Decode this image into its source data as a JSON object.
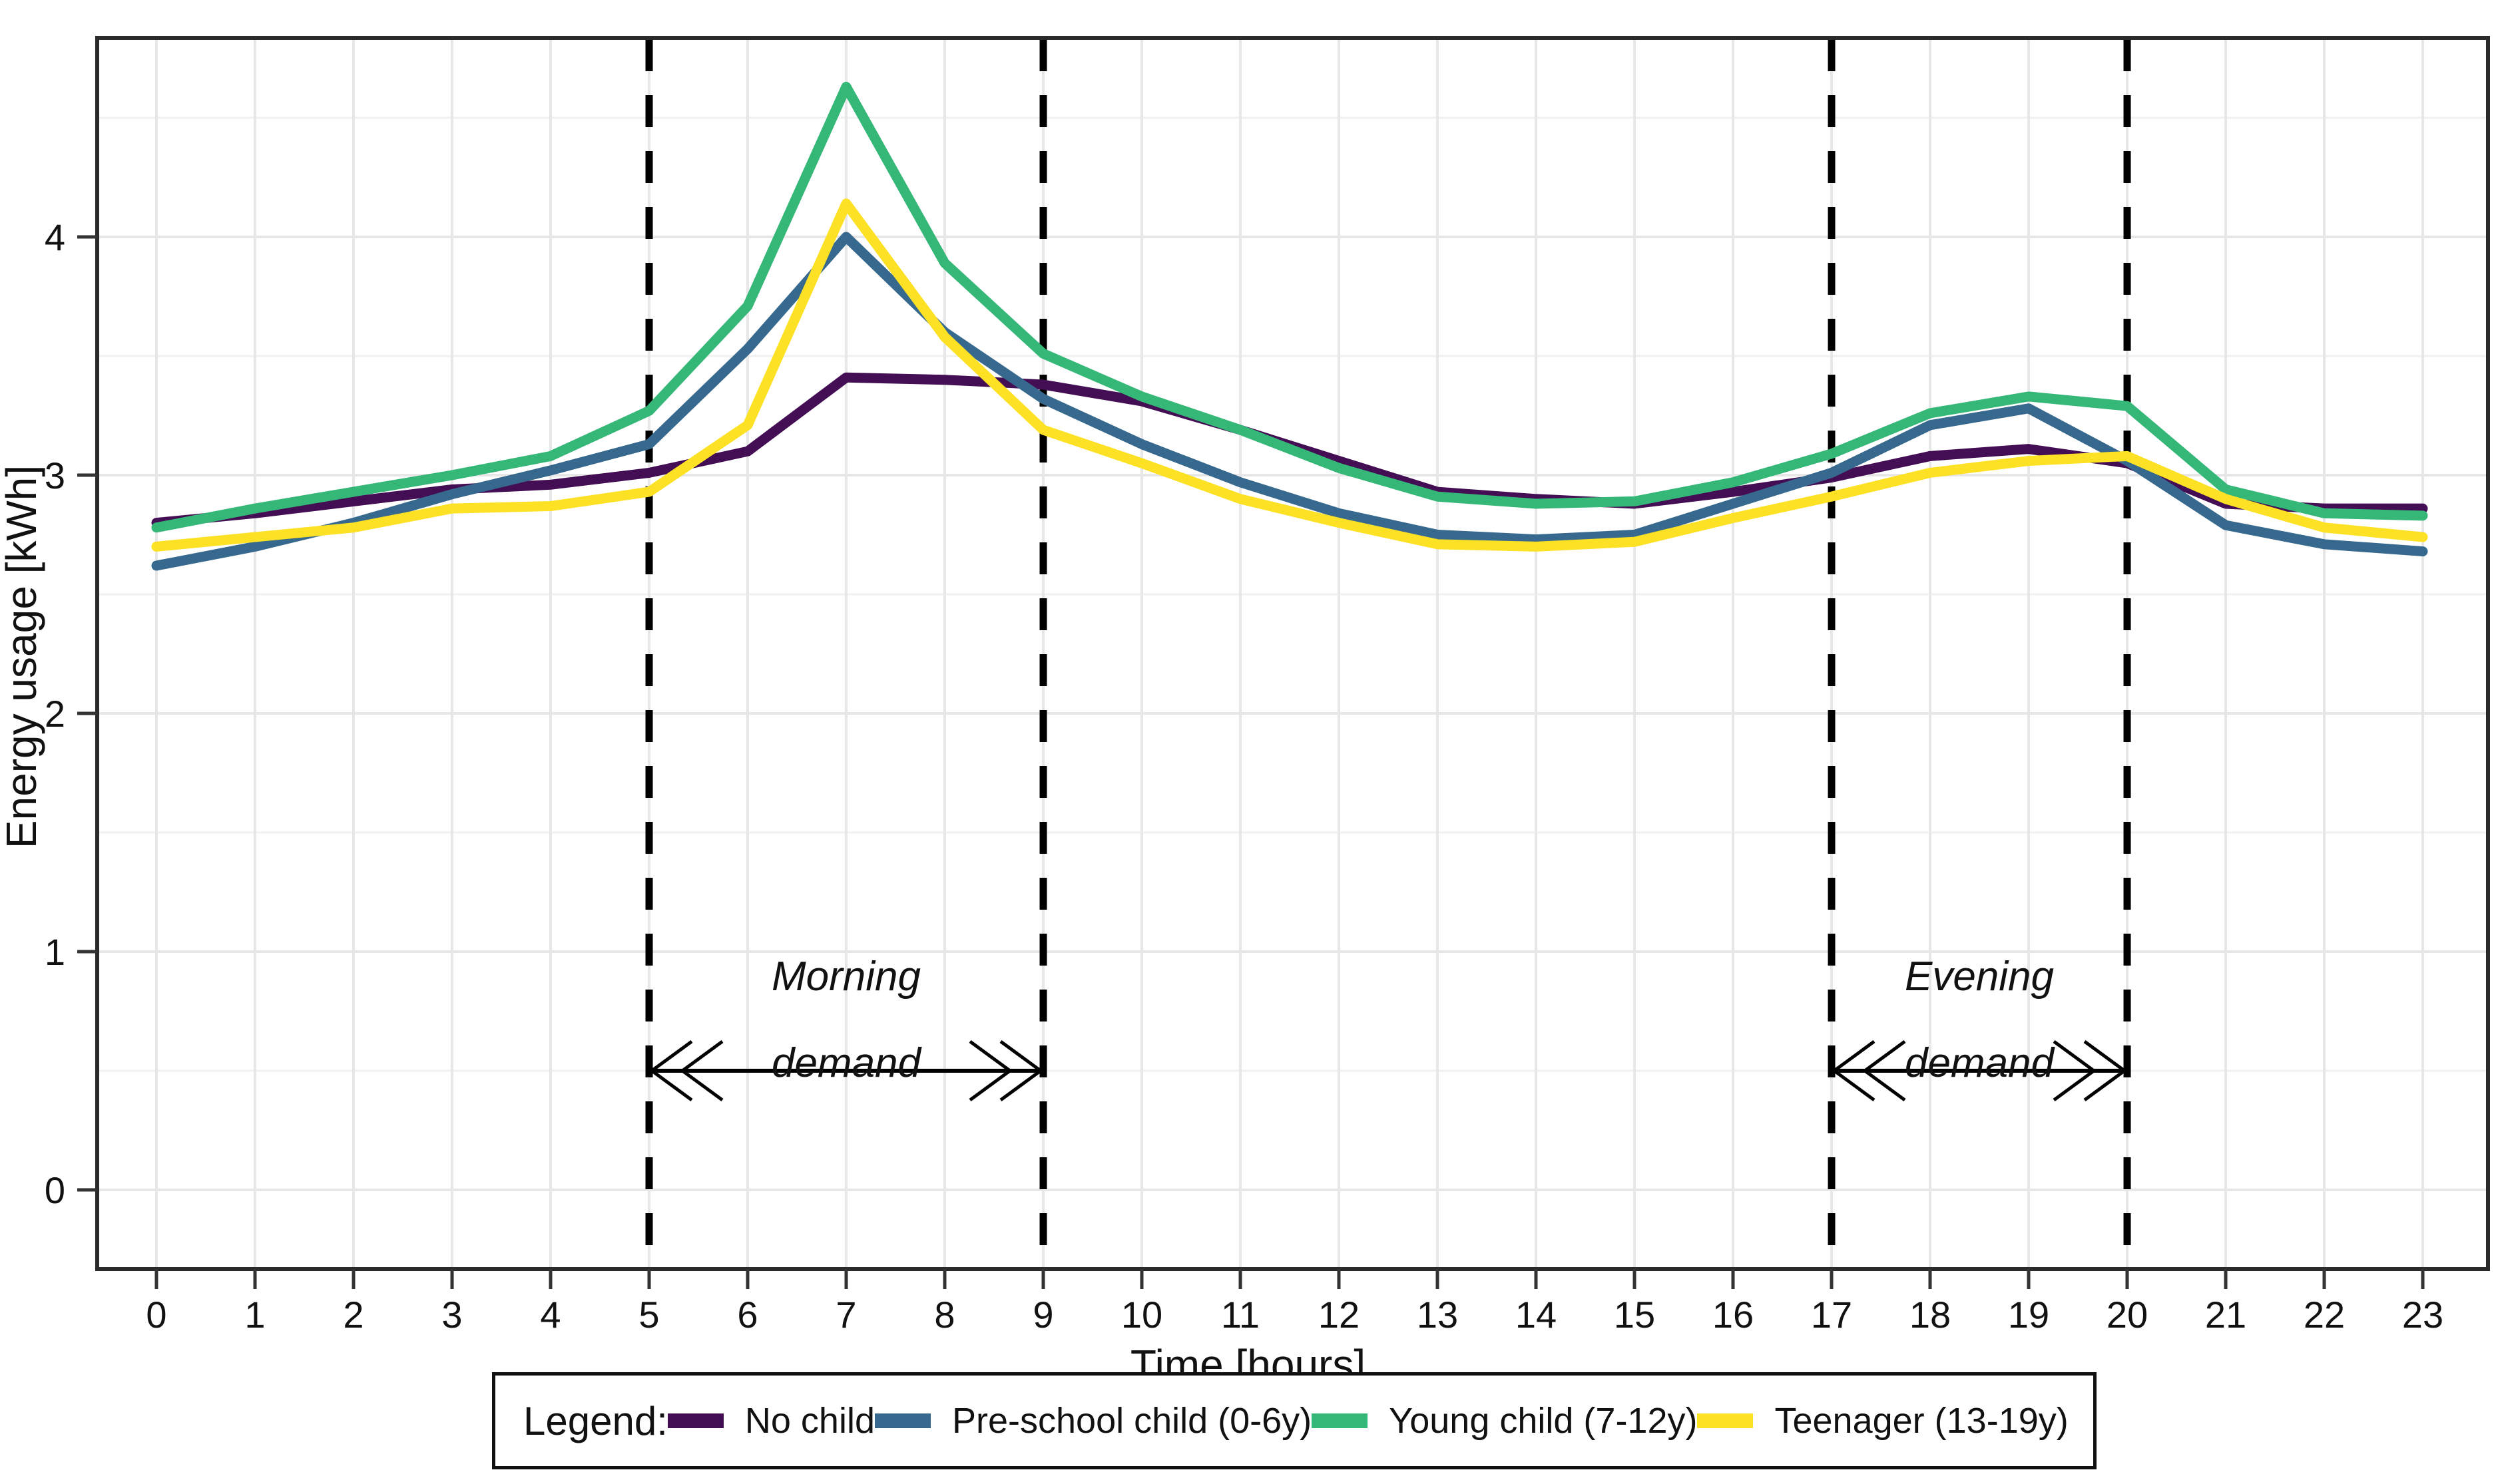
{
  "chart_data": {
    "type": "line",
    "title": "",
    "xlabel": "Time [hours]",
    "ylabel": "Energy usage [kWh]",
    "x": [
      0,
      1,
      2,
      3,
      4,
      5,
      6,
      7,
      8,
      9,
      10,
      11,
      12,
      13,
      14,
      15,
      16,
      17,
      18,
      19,
      20,
      21,
      22,
      23
    ],
    "x_tick_labels": [
      "0",
      "1",
      "2",
      "3",
      "4",
      "5",
      "6",
      "7",
      "8",
      "9",
      "10",
      "11",
      "12",
      "13",
      "14",
      "15",
      "16",
      "17",
      "18",
      "19",
      "20",
      "21",
      "22",
      "23"
    ],
    "y_ticks": [
      0,
      1,
      2,
      3,
      4
    ],
    "y_tick_labels": [
      "0",
      "1",
      "2",
      "3",
      "4"
    ],
    "xlim": [
      -0.6,
      23.66
    ],
    "ylim": [
      -0.33,
      4.84
    ],
    "grid": "vertical major every hour; horizontal gridlines every 0.5 kWh",
    "legend_position": "bottom boxed",
    "series": [
      {
        "name": "No child",
        "color": "#440E54",
        "values": [
          2.8,
          2.84,
          2.89,
          2.94,
          2.96,
          3.01,
          3.1,
          3.41,
          3.4,
          3.38,
          3.31,
          3.19,
          3.06,
          2.93,
          2.9,
          2.88,
          2.93,
          2.99,
          3.08,
          3.11,
          3.05,
          2.88,
          2.86,
          2.86
        ]
      },
      {
        "name": "Pre-school child (0-6y)",
        "color": "#37698E",
        "values": [
          2.62,
          2.7,
          2.8,
          2.92,
          3.02,
          3.13,
          3.53,
          4.0,
          3.6,
          3.32,
          3.13,
          2.97,
          2.84,
          2.75,
          2.73,
          2.75,
          2.88,
          3.01,
          3.21,
          3.28,
          3.06,
          2.79,
          2.71,
          2.68
        ]
      },
      {
        "name": "Young child (7-12y)",
        "color": "#35B778",
        "values": [
          2.78,
          2.86,
          2.93,
          3.0,
          3.08,
          3.27,
          3.71,
          4.63,
          3.89,
          3.51,
          3.33,
          3.19,
          3.03,
          2.91,
          2.88,
          2.89,
          2.97,
          3.09,
          3.26,
          3.33,
          3.29,
          2.94,
          2.84,
          2.83
        ]
      },
      {
        "name": "Teenager (13-19y)",
        "color": "#FCE125",
        "values": [
          2.7,
          2.74,
          2.78,
          2.86,
          2.87,
          2.93,
          3.21,
          4.14,
          3.58,
          3.19,
          3.05,
          2.9,
          2.8,
          2.71,
          2.7,
          2.72,
          2.82,
          2.91,
          3.01,
          3.06,
          3.08,
          2.9,
          2.78,
          2.74
        ]
      }
    ],
    "vlines": {
      "x": [
        5,
        9,
        17,
        20
      ],
      "style": "dashed",
      "color": "#000000"
    },
    "annotations": [
      {
        "line1": "Morning",
        "line2": "demand",
        "x_from": 5,
        "x_to": 9,
        "arrow_y": 0.5
      },
      {
        "line1": "Evening",
        "line2": "demand",
        "x_from": 17,
        "x_to": 20,
        "arrow_y": 0.5
      }
    ],
    "colors": {
      "panel_border": "#2a2a2a",
      "grid_major": "#e7e7e7",
      "grid_minor": "#f1f1f1",
      "tick": "#333333",
      "text": "#111111"
    }
  },
  "legend": {
    "title": "Legend:",
    "items": [
      {
        "label": "No child",
        "color": "#440E54"
      },
      {
        "label": "Pre-school child (0-6y)",
        "color": "#37698E"
      },
      {
        "label": "Young child (7-12y)",
        "color": "#35B778"
      },
      {
        "label": "Teenager (13-19y)",
        "color": "#FCE125"
      }
    ]
  }
}
